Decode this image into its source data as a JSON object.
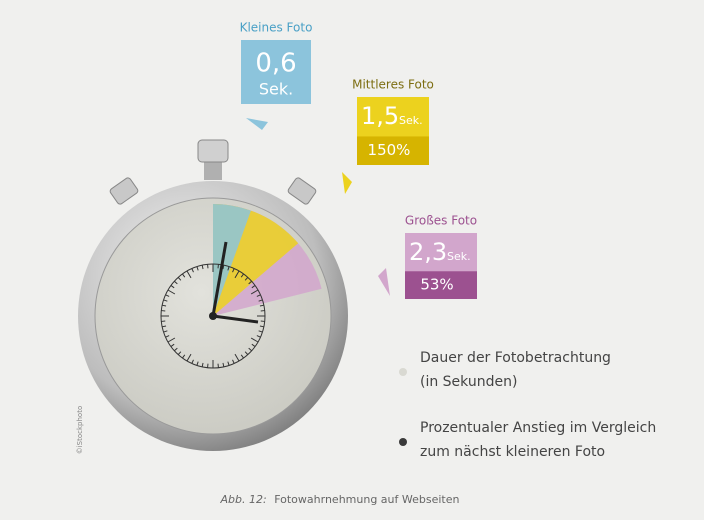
{
  "items": [
    {
      "label": "Kleines Foto",
      "value": 0.6,
      "value_label": "0,6",
      "unit": "Sek.",
      "color": "#8cc4dc",
      "dark": "#8cc4dc",
      "label_color": "#4aa0c6"
    },
    {
      "label": "Mittleres Foto",
      "value": 1.5,
      "value_label": "1,5",
      "unit": "Sek.",
      "increase_label": "150%",
      "color": "#ecd21e",
      "dark": "#d6b400",
      "label_color": "#7d6e12"
    },
    {
      "label": "Großes Foto",
      "value": 2.3,
      "value_label": "2,3",
      "unit": "Sek.",
      "increase_label": "53%",
      "color": "#d2a6cc",
      "dark": "#9c5190",
      "label_color": "#9c5190"
    }
  ],
  "legend": [
    {
      "lines": [
        "Dauer der Fotobetrachtung",
        "(in Sekunden)"
      ],
      "dot": "#d9d9d2"
    },
    {
      "lines": [
        "Prozentualer Anstieg im Vergleich",
        "zum nächst kleineren Foto"
      ],
      "dot": "#3a3a3a"
    }
  ],
  "caption": {
    "prefix": "Abb. 12:",
    "text": "Fotowahrnehmung auf Webseiten"
  },
  "credit": "©iStockphoto"
}
